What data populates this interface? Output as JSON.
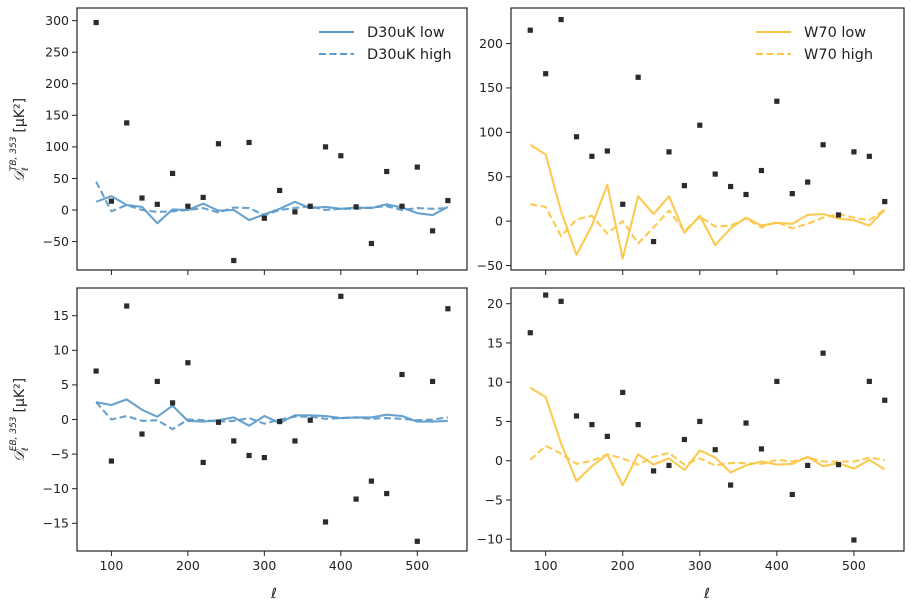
{
  "figure": {
    "xlabel": "ℓ",
    "ylabel_tb": "[μK²]",
    "ylabel_eb": "[μK²]",
    "ylabel_tb_symbol": "𝒟ℓ^{TB,353}",
    "ylabel_eb_symbol": "𝒟ℓ^{EB,353}"
  },
  "colors": {
    "blue": "#5b9ac9",
    "yellow": "#fcc543",
    "points": "#2b2b2b"
  },
  "chart_data": [
    {
      "type": "line",
      "panel": "top-left",
      "xlim": [
        55,
        565
      ],
      "ylim": [
        -95,
        320
      ],
      "xticks": [
        100,
        200,
        300,
        400,
        500
      ],
      "yticks": [
        -50,
        0,
        50,
        100,
        150,
        200,
        250,
        300
      ],
      "show_xticklabels": false,
      "legend_position": "top-right",
      "x": [
        80,
        100,
        120,
        140,
        160,
        180,
        200,
        220,
        240,
        260,
        280,
        300,
        320,
        340,
        360,
        380,
        400,
        420,
        440,
        460,
        480,
        500,
        520,
        540
      ],
      "series": [
        {
          "name": "D30uK low",
          "style": "solid",
          "color": "blue",
          "values": [
            13,
            22,
            8,
            5,
            -21,
            1,
            0,
            10,
            -1,
            0,
            -16,
            -7,
            2,
            13,
            3,
            5,
            2,
            4,
            3,
            9,
            4,
            -5,
            -8,
            5
          ]
        },
        {
          "name": "D30uK high",
          "style": "dashed",
          "color": "blue",
          "values": [
            45,
            -2,
            8,
            0,
            -3,
            -2,
            0,
            3,
            -4,
            4,
            3,
            -8,
            0,
            3,
            6,
            0,
            2,
            2,
            4,
            6,
            0,
            3,
            2,
            3
          ]
        },
        {
          "name": "data points",
          "style": "markers",
          "color": "points",
          "values": [
            297,
            14,
            138,
            19,
            9,
            58,
            6,
            20,
            105,
            -80,
            107,
            -13,
            31,
            -3,
            6,
            100,
            86,
            5,
            -53,
            61,
            6,
            68,
            -33,
            15
          ]
        }
      ]
    },
    {
      "type": "line",
      "panel": "top-right",
      "xlim": [
        55,
        565
      ],
      "ylim": [
        -55,
        240
      ],
      "xticks": [
        100,
        200,
        300,
        400,
        500
      ],
      "yticks": [
        -50,
        0,
        50,
        100,
        150,
        200
      ],
      "show_xticklabels": false,
      "legend_position": "top-right",
      "x": [
        80,
        100,
        120,
        140,
        160,
        180,
        200,
        220,
        240,
        260,
        280,
        300,
        320,
        340,
        360,
        380,
        400,
        420,
        440,
        460,
        480,
        500,
        520,
        540
      ],
      "series": [
        {
          "name": "W70 low",
          "style": "solid",
          "color": "yellow",
          "values": [
            86,
            75,
            11,
            -38,
            -5,
            41,
            -42,
            28,
            8,
            28,
            -13,
            6,
            -27,
            -8,
            4,
            -5,
            -2,
            -3,
            7,
            8,
            3,
            1,
            -5,
            13
          ]
        },
        {
          "name": "W70 high",
          "style": "dashed",
          "color": "yellow",
          "values": [
            19,
            16,
            -17,
            2,
            6,
            -14,
            0,
            -25,
            -7,
            12,
            -11,
            5,
            -6,
            -5,
            3,
            -7,
            -1,
            -8,
            -3,
            4,
            8,
            4,
            1,
            13
          ]
        },
        {
          "name": "data points",
          "style": "markers",
          "color": "points",
          "values": [
            215,
            166,
            227,
            95,
            73,
            79,
            19,
            162,
            -23,
            78,
            40,
            108,
            53,
            39,
            30,
            57,
            135,
            31,
            44,
            86,
            7,
            78,
            73,
            22
          ]
        }
      ]
    },
    {
      "type": "line",
      "panel": "bottom-left",
      "xlim": [
        55,
        565
      ],
      "ylim": [
        -19,
        19
      ],
      "xticks": [
        100,
        200,
        300,
        400,
        500
      ],
      "yticks": [
        -15,
        -10,
        -5,
        0,
        5,
        10,
        15
      ],
      "show_xticklabels": true,
      "legend_position": "none",
      "x": [
        80,
        100,
        120,
        140,
        160,
        180,
        200,
        220,
        240,
        260,
        280,
        300,
        320,
        340,
        360,
        380,
        400,
        420,
        440,
        460,
        480,
        500,
        520,
        540
      ],
      "series": [
        {
          "name": "D30uK low",
          "style": "solid",
          "color": "blue",
          "values": [
            2.5,
            2.1,
            2.9,
            1.4,
            0.4,
            2.0,
            -0.2,
            -0.3,
            -0.1,
            0.3,
            -0.9,
            0.5,
            -0.5,
            0.6,
            0.6,
            0.5,
            0.2,
            0.3,
            0.3,
            0.7,
            0.5,
            -0.3,
            -0.3,
            -0.2
          ]
        },
        {
          "name": "D30uK high",
          "style": "dashed",
          "color": "blue",
          "values": [
            2.5,
            0.0,
            0.5,
            -0.2,
            -0.1,
            -1.4,
            0.0,
            -0.1,
            -0.3,
            -0.2,
            0.2,
            -0.6,
            0.0,
            0.4,
            0.4,
            0.1,
            0.2,
            0.3,
            0.1,
            0.2,
            0.1,
            -0.1,
            0.0,
            0.3
          ]
        },
        {
          "name": "data points",
          "style": "markers",
          "color": "points",
          "values": [
            7.0,
            -6.0,
            16.4,
            -2.1,
            5.5,
            2.4,
            8.2,
            -6.2,
            -0.4,
            -3.1,
            -5.2,
            -5.5,
            -0.3,
            -3.1,
            -0.1,
            -14.8,
            17.8,
            -11.5,
            -8.9,
            -10.7,
            6.5,
            -17.6,
            5.5,
            16.0
          ]
        }
      ]
    },
    {
      "type": "line",
      "panel": "bottom-right",
      "xlim": [
        55,
        565
      ],
      "ylim": [
        -11.5,
        22
      ],
      "xticks": [
        100,
        200,
        300,
        400,
        500
      ],
      "yticks": [
        -10,
        -5,
        0,
        5,
        10,
        15,
        20
      ],
      "show_xticklabels": true,
      "legend_position": "none",
      "x": [
        80,
        100,
        120,
        140,
        160,
        180,
        200,
        220,
        240,
        260,
        280,
        300,
        320,
        340,
        360,
        380,
        400,
        420,
        440,
        460,
        480,
        500,
        520,
        540
      ],
      "series": [
        {
          "name": "W70 low",
          "style": "solid",
          "color": "yellow",
          "values": [
            9.3,
            8.1,
            2.2,
            -2.6,
            -0.7,
            0.8,
            -3.1,
            0.8,
            -0.5,
            0.3,
            -1.2,
            1.3,
            0.4,
            -1.5,
            -0.6,
            -0.1,
            -0.5,
            -0.4,
            0.5,
            -0.7,
            -0.3,
            -1.0,
            0.1,
            -1.1
          ]
        },
        {
          "name": "W70 high",
          "style": "dashed",
          "color": "yellow",
          "values": [
            0.1,
            1.9,
            0.9,
            -0.4,
            0.0,
            0.8,
            0.3,
            -0.5,
            0.5,
            1.0,
            -0.5,
            0.3,
            -0.6,
            -0.3,
            -0.3,
            -0.4,
            0.1,
            -0.1,
            0.4,
            -0.1,
            -0.1,
            -0.1,
            0.4,
            0.1
          ]
        },
        {
          "name": "data points",
          "style": "markers",
          "color": "points",
          "values": [
            16.3,
            21.1,
            20.3,
            5.7,
            4.6,
            3.1,
            8.7,
            4.6,
            -1.3,
            -0.6,
            2.7,
            5.0,
            1.4,
            -3.1,
            4.8,
            1.5,
            10.1,
            -4.3,
            -0.6,
            13.7,
            -0.5,
            -10.1,
            10.1,
            7.7
          ]
        }
      ]
    }
  ]
}
